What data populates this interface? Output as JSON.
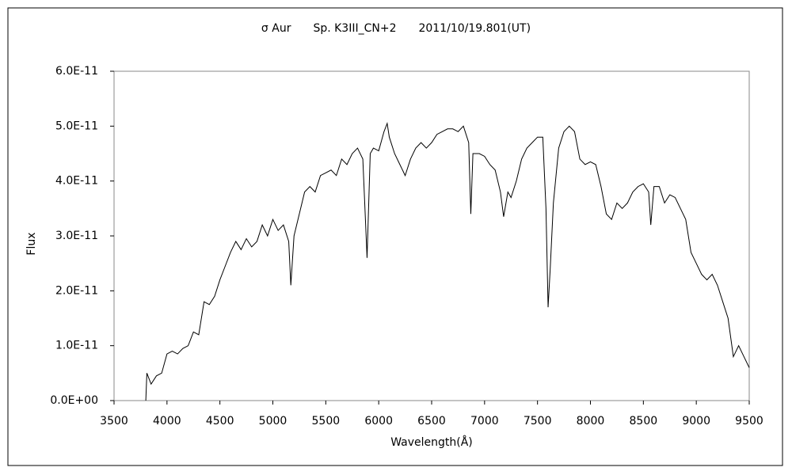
{
  "chart_data": {
    "type": "line",
    "title": "σ Aur　　Sp. K3III_CN+2　　2011/10/19.801(UT)",
    "x_label": "Wavelength(Å)",
    "y_label": "Flux",
    "color": "#000000",
    "grid": false,
    "xlim": [
      3500,
      9500
    ],
    "xticks": [
      3500,
      4000,
      4500,
      5000,
      5500,
      6000,
      6500,
      7000,
      7500,
      8000,
      8500,
      9000,
      9500
    ],
    "ylim": [
      0,
      6e-11
    ],
    "yticks": [
      {
        "value": 0,
        "label": "0.0E+00"
      },
      {
        "value": 1e-11,
        "label": "1.0E-11"
      },
      {
        "value": 2e-11,
        "label": "2.0E-11"
      },
      {
        "value": 3e-11,
        "label": "3.0E-11"
      },
      {
        "value": 4e-11,
        "label": "4.0E-11"
      },
      {
        "value": 5e-11,
        "label": "5.0E-11"
      },
      {
        "value": 6e-11,
        "label": "6.0E-11"
      }
    ],
    "x": [
      3800,
      3810,
      3850,
      3900,
      3950,
      4000,
      4050,
      4100,
      4150,
      4200,
      4250,
      4300,
      4350,
      4400,
      4450,
      4500,
      4550,
      4600,
      4650,
      4700,
      4750,
      4800,
      4850,
      4900,
      4950,
      5000,
      5050,
      5100,
      5150,
      5170,
      5200,
      5250,
      5300,
      5350,
      5400,
      5450,
      5500,
      5550,
      5600,
      5650,
      5700,
      5750,
      5800,
      5850,
      5890,
      5920,
      5950,
      6000,
      6050,
      6080,
      6100,
      6150,
      6200,
      6250,
      6300,
      6350,
      6400,
      6450,
      6500,
      6550,
      6600,
      6650,
      6700,
      6750,
      6800,
      6850,
      6870,
      6890,
      6950,
      7000,
      7050,
      7100,
      7150,
      7180,
      7220,
      7250,
      7300,
      7350,
      7400,
      7450,
      7500,
      7550,
      7580,
      7600,
      7620,
      7650,
      7700,
      7750,
      7800,
      7850,
      7900,
      7950,
      8000,
      8050,
      8100,
      8150,
      8200,
      8250,
      8300,
      8350,
      8400,
      8450,
      8500,
      8550,
      8570,
      8600,
      8650,
      8700,
      8750,
      8800,
      8850,
      8900,
      8950,
      9000,
      9050,
      9100,
      9150,
      9200,
      9250,
      9300,
      9350,
      9400,
      9450,
      9500
    ],
    "values": [
      0,
      5e-12,
      3e-12,
      4.5e-12,
      5e-12,
      8.5e-12,
      9e-12,
      8.5e-12,
      9.5e-12,
      1e-11,
      1.25e-11,
      1.2e-11,
      1.8e-11,
      1.75e-11,
      1.9e-11,
      2.2e-11,
      2.45e-11,
      2.7e-11,
      2.9e-11,
      2.75e-11,
      2.95e-11,
      2.8e-11,
      2.9e-11,
      3.2e-11,
      3e-11,
      3.3e-11,
      3.1e-11,
      3.2e-11,
      2.9e-11,
      2.1e-11,
      3e-11,
      3.4e-11,
      3.8e-11,
      3.9e-11,
      3.8e-11,
      4.1e-11,
      4.15e-11,
      4.2e-11,
      4.1e-11,
      4.4e-11,
      4.3e-11,
      4.5e-11,
      4.6e-11,
      4.4e-11,
      2.6e-11,
      4.5e-11,
      4.6e-11,
      4.55e-11,
      4.9e-11,
      5.05e-11,
      4.8e-11,
      4.5e-11,
      4.3e-11,
      4.1e-11,
      4.4e-11,
      4.6e-11,
      4.7e-11,
      4.6e-11,
      4.7e-11,
      4.85e-11,
      4.9e-11,
      4.95e-11,
      4.95e-11,
      4.9e-11,
      5e-11,
      4.7e-11,
      3.4e-11,
      4.5e-11,
      4.5e-11,
      4.45e-11,
      4.3e-11,
      4.2e-11,
      3.8e-11,
      3.35e-11,
      3.8e-11,
      3.7e-11,
      4e-11,
      4.4e-11,
      4.6e-11,
      4.7e-11,
      4.8e-11,
      4.8e-11,
      3.5e-11,
      1.7e-11,
      2.4e-11,
      3.6e-11,
      4.6e-11,
      4.9e-11,
      5e-11,
      4.9e-11,
      4.4e-11,
      4.3e-11,
      4.35e-11,
      4.3e-11,
      3.9e-11,
      3.4e-11,
      3.3e-11,
      3.6e-11,
      3.5e-11,
      3.6e-11,
      3.8e-11,
      3.9e-11,
      3.95e-11,
      3.8e-11,
      3.2e-11,
      3.9e-11,
      3.9e-11,
      3.6e-11,
      3.75e-11,
      3.7e-11,
      3.5e-11,
      3.3e-11,
      2.7e-11,
      2.5e-11,
      2.3e-11,
      2.2e-11,
      2.3e-11,
      2.1e-11,
      1.8e-11,
      1.5e-11,
      8e-12,
      1e-11,
      8e-12,
      6e-12
    ]
  }
}
